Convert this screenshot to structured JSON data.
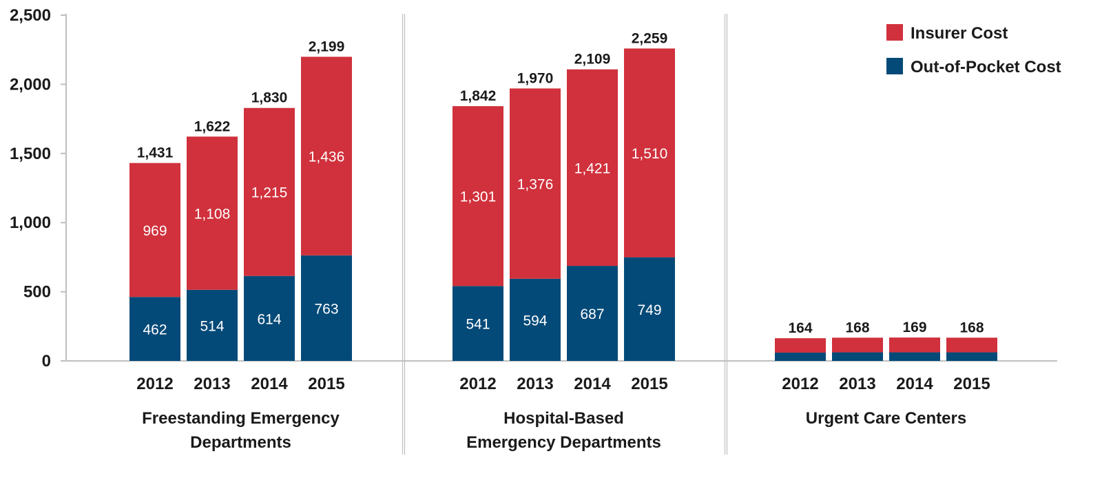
{
  "colors": {
    "insurer": "#d0313c",
    "oop": "#044a78",
    "axis": "#bfbfbf"
  },
  "chart_data": {
    "type": "bar",
    "stacked": true,
    "ylim": [
      0,
      2500
    ],
    "yticks": [
      "0",
      "500",
      "1,000",
      "1,500",
      "2,000",
      "2,500"
    ],
    "ytick_values": [
      0,
      500,
      1000,
      1500,
      2000,
      2500
    ],
    "legend": {
      "placement": "top-right",
      "entries": [
        "Insurer Cost",
        "Out-of-Pocket Cost"
      ]
    },
    "groups": [
      {
        "label": [
          "Freestanding Emergency",
          "Departments"
        ],
        "categories": [
          "2012",
          "2013",
          "2014",
          "2015"
        ],
        "series": [
          {
            "name": "Out-of-Pocket Cost",
            "values": [
              462,
              514,
              614,
              763
            ],
            "labels": [
              "462",
              "514",
              "614",
              "763"
            ]
          },
          {
            "name": "Insurer Cost",
            "values": [
              969,
              1108,
              1215,
              1436
            ],
            "labels": [
              "969",
              "1,108",
              "1,215",
              "1,436"
            ]
          }
        ],
        "totals": [
          1431,
          1622,
          1830,
          2199
        ],
        "total_labels": [
          "1,431",
          "1,622",
          "1,830",
          "2,199"
        ]
      },
      {
        "label": [
          "Hospital-Based",
          "Emergency Departments"
        ],
        "categories": [
          "2012",
          "2013",
          "2014",
          "2015"
        ],
        "series": [
          {
            "name": "Out-of-Pocket Cost",
            "values": [
              541,
              594,
              687,
              749
            ],
            "labels": [
              "541",
              "594",
              "687",
              "749"
            ]
          },
          {
            "name": "Insurer Cost",
            "values": [
              1301,
              1376,
              1421,
              1510
            ],
            "labels": [
              "1,301",
              "1,376",
              "1,421",
              "1,510"
            ]
          }
        ],
        "totals": [
          1842,
          1970,
          2109,
          2259
        ],
        "total_labels": [
          "1,842",
          "1,970",
          "2,109",
          "2,259"
        ]
      },
      {
        "label": [
          "Urgent Care Centers"
        ],
        "categories": [
          "2012",
          "2013",
          "2014",
          "2015"
        ],
        "series": [
          {
            "name": "Out-of-Pocket Cost",
            "values": [
              60,
              62,
              62,
              62
            ],
            "labels": null
          },
          {
            "name": "Insurer Cost",
            "values": [
              104,
              106,
              107,
              106
            ],
            "labels": null
          }
        ],
        "totals": [
          164,
          168,
          169,
          168
        ],
        "total_labels": [
          "164",
          "168",
          "169",
          "168"
        ]
      }
    ]
  }
}
